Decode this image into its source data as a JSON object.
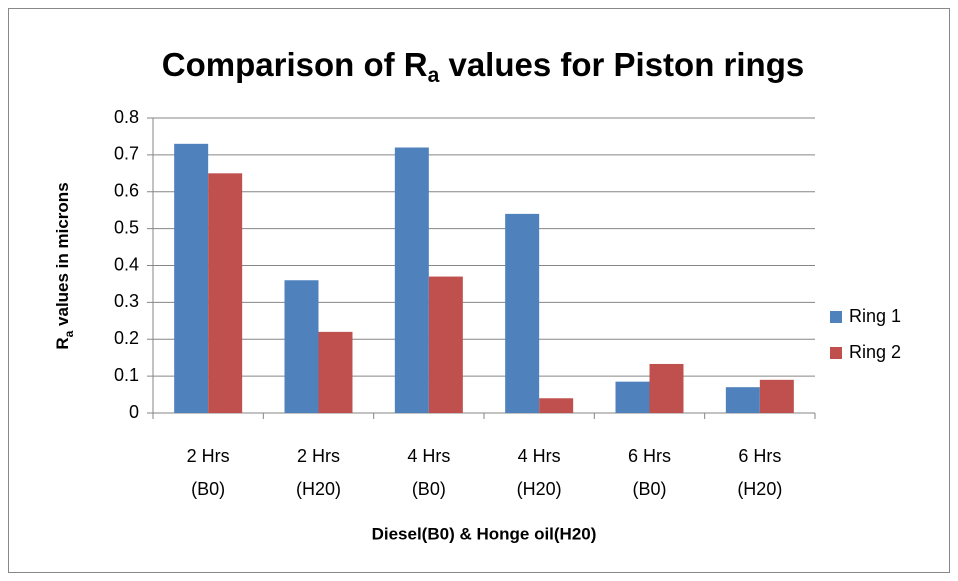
{
  "chart_data": {
    "type": "bar",
    "title": [
      "Comparison of R",
      "a",
      " values for Piston rings"
    ],
    "x_label": "Diesel(B0) & Honge oil(H20)",
    "y_label": [
      "R",
      "a",
      " values in microns"
    ],
    "categories": [
      [
        "2 Hrs",
        "(B0)"
      ],
      [
        "2 Hrs",
        "(H20)"
      ],
      [
        "4 Hrs",
        "(B0)"
      ],
      [
        "4 Hrs",
        "(H20)"
      ],
      [
        "6 Hrs",
        "(B0)"
      ],
      [
        "6 Hrs",
        "(H20)"
      ]
    ],
    "series": [
      {
        "name": "Ring 1",
        "color": "#4f81bd",
        "values": [
          0.73,
          0.36,
          0.72,
          0.54,
          0.085,
          0.07
        ]
      },
      {
        "name": "Ring 2",
        "color": "#c0504d",
        "values": [
          0.65,
          0.22,
          0.37,
          0.04,
          0.133,
          0.09
        ]
      }
    ],
    "ylim": [
      0,
      0.8
    ],
    "yticks": [
      0,
      0.1,
      0.2,
      0.3,
      0.4,
      0.5,
      0.6,
      0.7,
      0.8
    ],
    "grid": true,
    "legend": "right"
  }
}
